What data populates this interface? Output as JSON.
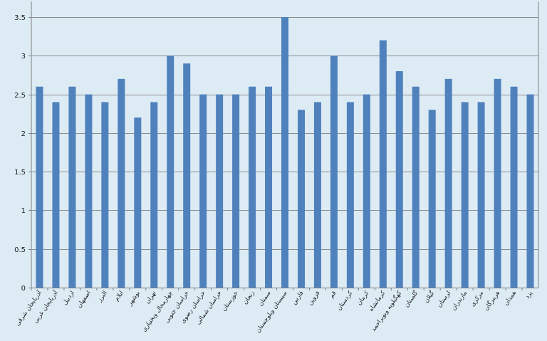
{
  "chart_data": {
    "type": "bar",
    "categories": [
      "آذربایجان شرقی",
      "آذربایجان غربی",
      "اردبیل",
      "اصفهان",
      "البرز",
      "ایلام",
      "بوشهر",
      "تهران",
      "چهارمحال وبختیاری",
      "خراسان جنوبی",
      "خراسان رضوی",
      "خراسان شمالی",
      "خوزستان",
      "زنجان",
      "سمنان",
      "سیستان وبلوچستان",
      "فارس",
      "قزوین",
      "قم",
      "کردستان",
      "کرمان",
      "کرمانشاه",
      "کهگیلویه وبویراحمد",
      "گلستان",
      "گیلان",
      "لرستان",
      "مازندران",
      "مرکزی",
      "هرمزگان",
      "همدان",
      "یزد"
    ],
    "values": [
      2.6,
      2.4,
      2.6,
      2.5,
      2.4,
      2.7,
      2.2,
      2.4,
      3.0,
      2.9,
      2.5,
      2.5,
      2.5,
      2.6,
      2.6,
      3.5,
      2.3,
      2.4,
      3.0,
      2.4,
      2.5,
      3.2,
      2.8,
      2.6,
      2.3,
      2.7,
      2.4,
      2.4,
      2.7,
      2.6,
      2.5
    ],
    "yticks": [
      "0",
      "0.5",
      "1",
      "1.5",
      "2",
      "2.5",
      "3",
      "3.5"
    ],
    "ylim": [
      0,
      3.7
    ],
    "grid": true,
    "legend": "none",
    "bar_color": "#4f81bd",
    "grid_color": "#8c8c8c",
    "background": "#dcebf4"
  }
}
